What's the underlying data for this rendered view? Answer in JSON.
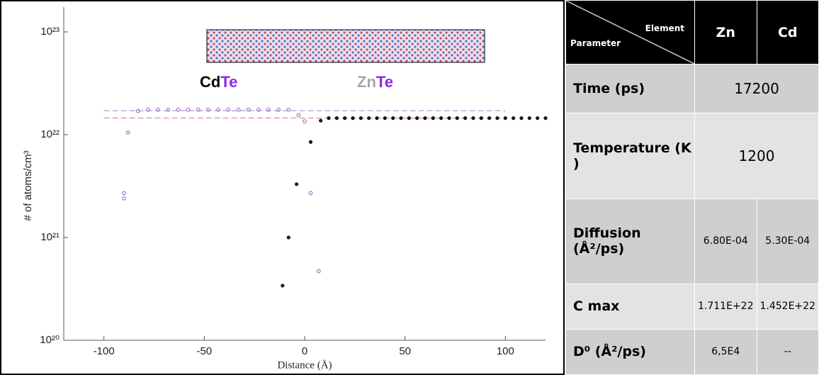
{
  "chart_data": {
    "type": "scatter",
    "xlabel": "Distance (Å)",
    "ylabel": "# of atoms/cm³",
    "annotations": [
      [
        "Cd",
        "Te"
      ],
      [
        "Zn",
        "Te"
      ]
    ],
    "xlim": [
      -120,
      120
    ],
    "xticks": [
      -100,
      -50,
      0,
      50,
      100
    ],
    "ylim": [
      1e+20,
      1e+23
    ],
    "log_y": true,
    "yticks": [
      {
        "value": 1e+20,
        "label": "10²⁰"
      },
      {
        "value": 1e+21,
        "label": "10²¹"
      },
      {
        "value": 1e+22,
        "label": "10²²"
      },
      {
        "value": 1e+23,
        "label": "10²³"
      }
    ],
    "reference_lines": [
      1.711e+22,
      1.452e+22
    ],
    "series": [
      {
        "color": "#a070d8",
        "marker": "open",
        "x": [
          -90,
          -90,
          -88,
          -83,
          -78,
          -73,
          -68,
          -63,
          -58,
          -53,
          -48,
          -43,
          -38,
          -33,
          -28,
          -23,
          -18,
          -13,
          -8,
          -3,
          0,
          3,
          7
        ],
        "values": [
          2.7e+21,
          2.4e+21,
          1.05e+22,
          1.7e+22,
          1.75e+22,
          1.75e+22,
          1.75e+22,
          1.75e+22,
          1.75e+22,
          1.75e+22,
          1.75e+22,
          1.75e+22,
          1.75e+22,
          1.75e+22,
          1.75e+22,
          1.75e+22,
          1.75e+22,
          1.75e+22,
          1.75e+22,
          1.55e+22,
          1.35e+22,
          2.7e+21,
          4.7e+20
        ]
      },
      {
        "color": "#1a1030",
        "marker": "filled",
        "x": [
          -11,
          -8,
          -4,
          3,
          8,
          12,
          16,
          20,
          24,
          28,
          32,
          36,
          40,
          44,
          48,
          52,
          56,
          60,
          64,
          68,
          72,
          76,
          80,
          84,
          88,
          92,
          96,
          100,
          104,
          108,
          112,
          116,
          120
        ],
        "values": [
          3.4e+20,
          1e+21,
          3.3e+21,
          8.5e+21,
          1.37e+22,
          1.45e+22,
          1.45e+22,
          1.45e+22,
          1.45e+22,
          1.45e+22,
          1.45e+22,
          1.45e+22,
          1.45e+22,
          1.45e+22,
          1.45e+22,
          1.45e+22,
          1.45e+22,
          1.45e+22,
          1.45e+22,
          1.45e+22,
          1.45e+22,
          1.45e+22,
          1.45e+22,
          1.45e+22,
          1.45e+22,
          1.45e+22,
          1.45e+22,
          1.45e+22,
          1.45e+22,
          1.45e+22,
          1.45e+22,
          1.45e+22,
          1.45e+22
        ]
      }
    ]
  },
  "table": {
    "corner": {
      "row_label": "Parameter",
      "column_label": "Element"
    },
    "columns": [
      "Zn",
      "Cd"
    ],
    "rows": [
      [
        "Time (ps)",
        "17200"
      ],
      [
        "Temperature (K )",
        "1200"
      ],
      [
        "Diffusion (Å²/ps)",
        "6.80E-04",
        "5.30E-04"
      ],
      [
        "C max",
        "1.711E+22",
        "1.452E+22"
      ],
      [
        "D⁰ (Å²/ps)",
        "6,5E4",
        "--"
      ]
    ]
  }
}
